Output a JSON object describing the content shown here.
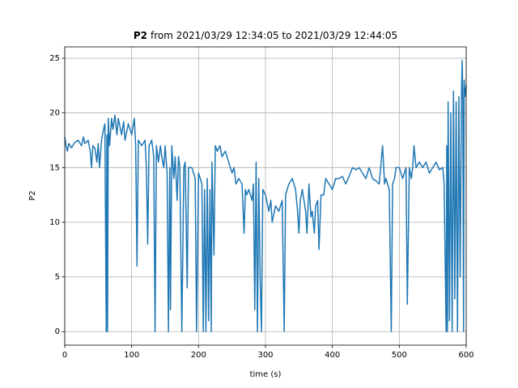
{
  "chart_data": {
    "type": "line",
    "title_bold": "P2",
    "title": "from 2021/03/29 12:34:05 to 2021/03/29 12:44:05",
    "xlabel": "time (s)",
    "ylabel": "P2",
    "xlim": [
      0,
      600
    ],
    "ylim": [
      -1.24,
      26.04
    ],
    "xticks": [
      0,
      100,
      200,
      300,
      400,
      500,
      600
    ],
    "yticks": [
      0,
      5,
      10,
      15,
      20,
      25
    ],
    "grid": true,
    "series": [
      {
        "color": "#1f77b4",
        "x": [
          0,
          2,
          4,
          6,
          10,
          15,
          20,
          25,
          28,
          30,
          35,
          38,
          40,
          42,
          45,
          48,
          50,
          52,
          55,
          58,
          60,
          62,
          63,
          64,
          65,
          67,
          70,
          72,
          75,
          78,
          80,
          85,
          88,
          90,
          95,
          100,
          104,
          106,
          108,
          110,
          115,
          120,
          122,
          124,
          126,
          130,
          133,
          135,
          137,
          140,
          143,
          145,
          148,
          150,
          153,
          155,
          157,
          158,
          160,
          163,
          165,
          168,
          170,
          172,
          175,
          178,
          180,
          183,
          185,
          190,
          195,
          197,
          200,
          205,
          207,
          209,
          211,
          213,
          215,
          217,
          219,
          220,
          223,
          225,
          228,
          232,
          235,
          240,
          245,
          250,
          253,
          256,
          260,
          265,
          268,
          270,
          272,
          275,
          280,
          282,
          284,
          286,
          288,
          290,
          292,
          294,
          296,
          300,
          305,
          308,
          310,
          315,
          320,
          325,
          328,
          330,
          335,
          340,
          345,
          348,
          350,
          352,
          355,
          360,
          362,
          365,
          368,
          370,
          373,
          375,
          378,
          380,
          383,
          387,
          390,
          395,
          400,
          405,
          410,
          415,
          420,
          425,
          430,
          435,
          440,
          445,
          450,
          455,
          460,
          465,
          470,
          475,
          478,
          480,
          485,
          488,
          490,
          493,
          495,
          500,
          505,
          510,
          512,
          515,
          518,
          520,
          522,
          525,
          530,
          535,
          540,
          545,
          550,
          555,
          560,
          565,
          567,
          570,
          571,
          572,
          573,
          575,
          577,
          579,
          581,
          583,
          585,
          587,
          589,
          591,
          593,
          594,
          595,
          596,
          597,
          598,
          600
        ],
        "values": [
          17.8,
          17,
          16.5,
          17.2,
          16.8,
          17.3,
          17.5,
          17,
          17.8,
          17.2,
          17.5,
          16.5,
          15,
          17,
          16.8,
          15.5,
          17.2,
          15,
          17.5,
          18.5,
          19,
          0,
          18,
          0,
          19.5,
          17,
          19.5,
          18.5,
          19.8,
          18,
          19.5,
          18,
          19.2,
          17.5,
          19,
          18,
          19.5,
          17,
          6,
          17.5,
          17,
          17.5,
          15,
          8,
          17,
          17.5,
          16,
          0,
          17,
          15.5,
          17,
          16,
          15,
          17,
          14.5,
          0,
          15,
          2,
          17,
          14,
          16,
          12,
          16,
          15,
          0,
          15,
          15.5,
          4,
          15,
          15,
          14,
          0,
          14.5,
          13.5,
          0,
          13,
          0,
          14,
          1,
          13,
          0,
          15.5,
          7,
          17,
          16.5,
          17,
          16,
          16.5,
          15.5,
          14.5,
          15,
          13.5,
          14,
          13.5,
          9,
          13,
          12.5,
          13,
          12,
          13.5,
          2,
          15.5,
          0,
          14,
          5,
          0,
          13,
          12.5,
          11,
          12,
          10,
          11.5,
          11,
          12,
          0,
          12.5,
          13.5,
          14,
          13,
          11,
          9,
          12,
          13,
          11,
          9,
          13.5,
          10.5,
          11,
          9,
          11.5,
          12,
          7.5,
          12.5,
          12.5,
          14,
          13.5,
          13,
          14,
          14,
          14.2,
          13.5,
          14.2,
          15,
          14.8,
          15,
          14.5,
          14,
          15,
          14,
          13.8,
          13.5,
          17,
          13.5,
          14,
          13,
          0,
          13.5,
          14,
          15,
          15,
          14,
          15,
          2.5,
          15,
          14,
          15,
          17,
          15,
          15.5,
          15,
          15.5,
          14.5,
          15,
          15.5,
          14.8,
          15,
          13.5,
          0,
          17,
          0,
          21,
          1,
          20,
          0,
          22,
          3,
          21,
          0,
          21.5,
          5,
          22,
          24.8,
          21,
          0,
          23,
          21.5,
          22.5
        ]
      }
    ]
  }
}
